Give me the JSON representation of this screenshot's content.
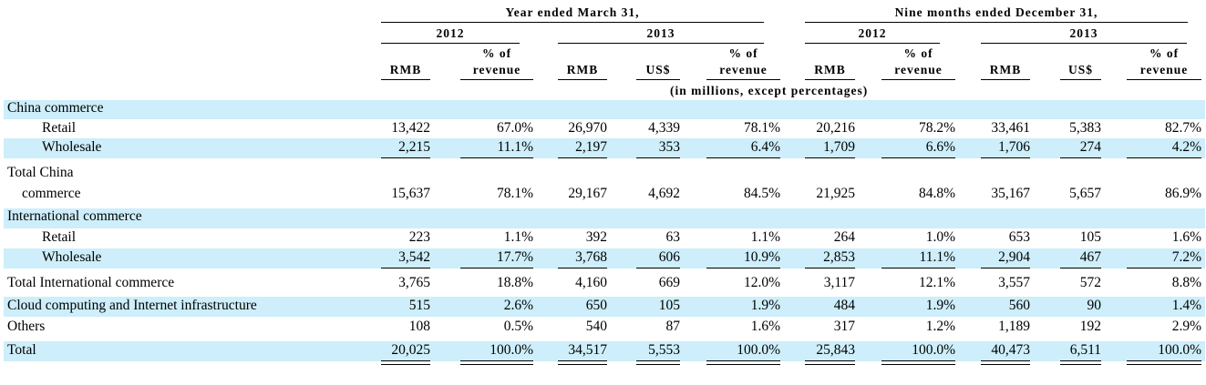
{
  "header": {
    "group_year": "Year ended March 31,",
    "group_nine": "Nine months ended December 31,",
    "years": [
      "2012",
      "2013",
      "2012",
      "2013"
    ],
    "col_headers": [
      {
        "line1": "",
        "line2": "RMB"
      },
      {
        "line1": "% of",
        "line2": "revenue"
      },
      {
        "line1": "",
        "line2": "RMB"
      },
      {
        "line1": "",
        "line2": "US$"
      },
      {
        "line1": "% of",
        "line2": "revenue"
      },
      {
        "line1": "",
        "line2": "RMB"
      },
      {
        "line1": "% of",
        "line2": "revenue"
      },
      {
        "line1": "",
        "line2": "RMB"
      },
      {
        "line1": "",
        "line2": "US$"
      },
      {
        "line1": "% of",
        "line2": "revenue"
      }
    ],
    "units_note": "(in millions, except percentages)"
  },
  "rows": [
    {
      "label": "China commerce",
      "values": []
    },
    {
      "label": "Retail",
      "values": [
        "13,422",
        "67.0%",
        "26,970",
        "4,339",
        "78.1%",
        "20,216",
        "78.2%",
        "33,461",
        "5,383",
        "82.7%"
      ]
    },
    {
      "label": "Wholesale",
      "values": [
        "2,215",
        "11.1%",
        "2,197",
        "353",
        "6.4%",
        "1,709",
        "6.6%",
        "1,706",
        "274",
        "4.2%"
      ]
    },
    {
      "label": "Total China",
      "values": []
    },
    {
      "label": "commerce",
      "values": [
        "15,637",
        "78.1%",
        "29,167",
        "4,692",
        "84.5%",
        "21,925",
        "84.8%",
        "35,167",
        "5,657",
        "86.9%"
      ]
    },
    {
      "label": "International commerce",
      "values": []
    },
    {
      "label": "Retail",
      "values": [
        "223",
        "1.1%",
        "392",
        "63",
        "1.1%",
        "264",
        "1.0%",
        "653",
        "105",
        "1.6%"
      ]
    },
    {
      "label": "Wholesale",
      "values": [
        "3,542",
        "17.7%",
        "3,768",
        "606",
        "10.9%",
        "2,853",
        "11.1%",
        "2,904",
        "467",
        "7.2%"
      ]
    },
    {
      "label": "Total International commerce",
      "values": [
        "3,765",
        "18.8%",
        "4,160",
        "669",
        "12.0%",
        "3,117",
        "12.1%",
        "3,557",
        "572",
        "8.8%"
      ]
    },
    {
      "label": "Cloud computing and Internet infrastructure",
      "values": [
        "515",
        "2.6%",
        "650",
        "105",
        "1.9%",
        "484",
        "1.9%",
        "560",
        "90",
        "1.4%"
      ]
    },
    {
      "label": "Others",
      "values": [
        "108",
        "0.5%",
        "540",
        "87",
        "1.6%",
        "317",
        "1.2%",
        "1,189",
        "192",
        "2.9%"
      ]
    },
    {
      "label": "Total",
      "values": [
        "20,025",
        "100.0%",
        "34,517",
        "5,553",
        "100.0%",
        "25,843",
        "100.0%",
        "40,473",
        "6,511",
        "100.0%"
      ]
    }
  ],
  "colors": {
    "band": "#cdeefa"
  }
}
